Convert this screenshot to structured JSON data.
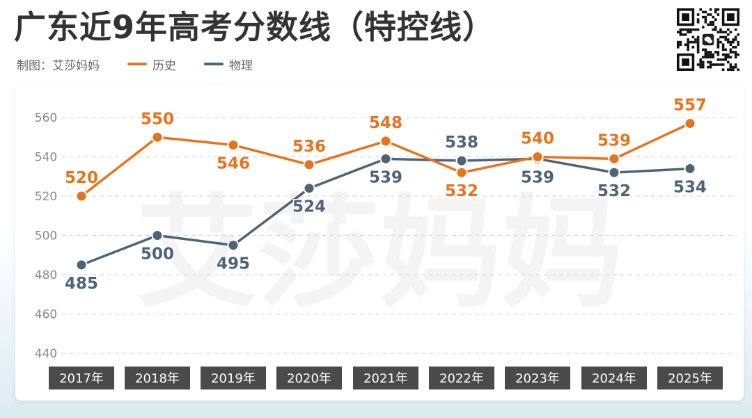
{
  "header": {
    "title": "广东近9年高考分数线（特控线）",
    "credit": "制图：艾莎妈妈"
  },
  "colors": {
    "history": "#e8731c",
    "physics": "#4d6478",
    "grid": "#d9d9d9",
    "year_box": "#4a4a4a"
  },
  "qr_icon": "qr-code-icon",
  "chart_data": {
    "type": "line",
    "title": "广东近9年高考分数线（特控线）",
    "xlabel": "",
    "ylabel": "",
    "categories": [
      "2017年",
      "2018年",
      "2019年",
      "2020年",
      "2021年",
      "2022年",
      "2023年",
      "2024年",
      "2025年"
    ],
    "series": [
      {
        "name": "历史",
        "values": [
          520,
          550,
          546,
          536,
          548,
          532,
          540,
          539,
          557
        ]
      },
      {
        "name": "物理",
        "values": [
          485,
          500,
          495,
          524,
          539,
          538,
          539,
          532,
          534
        ]
      }
    ],
    "ylim": [
      440,
      560
    ],
    "yticks": [
      440,
      460,
      480,
      500,
      520,
      540,
      560
    ],
    "grid": true,
    "legend": "top-left",
    "watermark": "艾莎妈妈"
  }
}
